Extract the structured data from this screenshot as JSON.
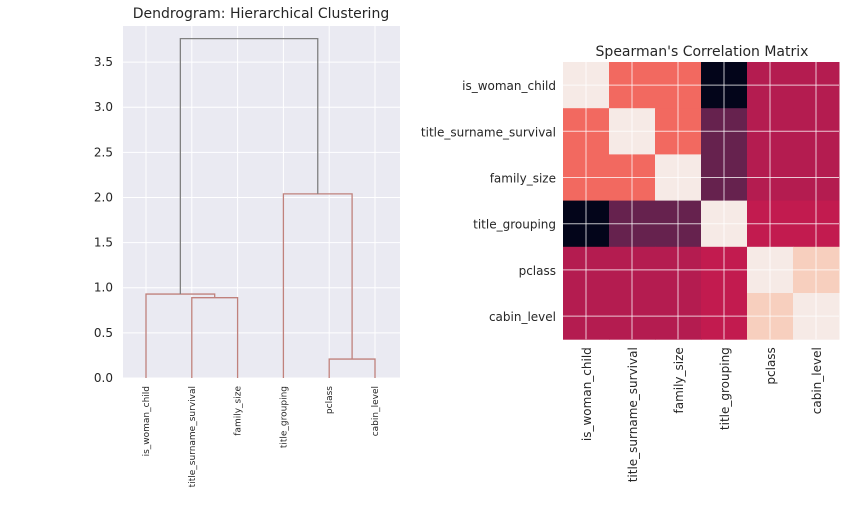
{
  "chart_data": [
    {
      "type": "dendrogram",
      "title": "Dendrogram: Hierarchical Clustering",
      "leaves": [
        "is_woman_child",
        "title_surname_survival",
        "family_size",
        "title_grouping",
        "pclass",
        "cabin_level"
      ],
      "yticks": [
        "0.0",
        "0.5",
        "1.0",
        "1.5",
        "2.0",
        "2.5",
        "3.0",
        "3.5"
      ],
      "ylim": [
        0,
        3.9
      ],
      "links": [
        {
          "left": [
            1,
            0
          ],
          "right": [
            2,
            0
          ],
          "height": 0.89
        },
        {
          "left": [
            0,
            0
          ],
          "right": [
            1.5,
            0.89
          ],
          "height": 0.93
        },
        {
          "left": [
            4,
            0
          ],
          "right": [
            5,
            0
          ],
          "height": 0.21
        },
        {
          "left": [
            3,
            0
          ],
          "right": [
            4.5,
            0.21
          ],
          "height": 2.04
        },
        {
          "left": [
            0.75,
            0.93
          ],
          "right": [
            3.75,
            2.04
          ],
          "height": 3.76
        }
      ],
      "colors": {
        "top_link": "#808080",
        "cluster_link": "#c0817c",
        "background": "#eaeaf2",
        "grid": "#ffffff"
      },
      "grid": true
    },
    {
      "type": "heatmap",
      "title": "Spearman's Correlation Matrix",
      "labels": [
        "is_woman_child",
        "title_surname_survival",
        "family_size",
        "title_grouping",
        "pclass",
        "cabin_level"
      ],
      "values": [
        [
          1.0,
          0.55,
          0.55,
          -0.35,
          0.25,
          0.25
        ],
        [
          0.55,
          1.0,
          0.55,
          0.05,
          0.25,
          0.25
        ],
        [
          0.55,
          0.55,
          1.0,
          0.05,
          0.25,
          0.25
        ],
        [
          -0.35,
          0.05,
          0.05,
          1.0,
          0.28,
          0.28
        ],
        [
          0.25,
          0.25,
          0.25,
          0.28,
          1.0,
          0.9
        ],
        [
          0.25,
          0.25,
          0.25,
          0.28,
          0.9,
          1.0
        ]
      ],
      "vrange": [
        -0.35,
        1.0
      ],
      "colorscale": "rocket",
      "grid": true
    }
  ]
}
